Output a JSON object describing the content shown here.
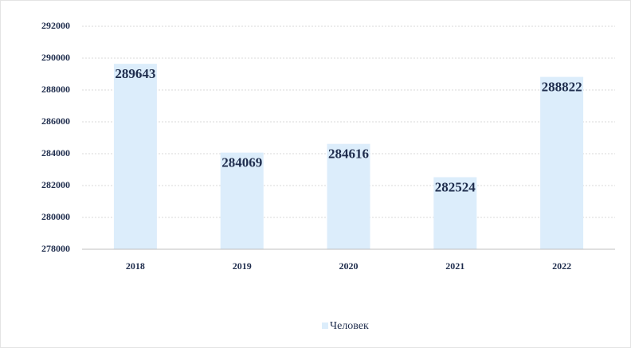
{
  "chart_data": {
    "type": "bar",
    "categories": [
      "2018",
      "2019",
      "2020",
      "2021",
      "2022"
    ],
    "series": [
      {
        "name": "Человек",
        "color": "#dcedfb",
        "values": [
          289643,
          284069,
          284616,
          282524,
          288822
        ]
      }
    ],
    "ylim": [
      278000,
      292000
    ],
    "yticks": [
      278000,
      280000,
      282000,
      284000,
      286000,
      288000,
      290000,
      292000
    ],
    "grid": true,
    "legend": "bottom"
  }
}
